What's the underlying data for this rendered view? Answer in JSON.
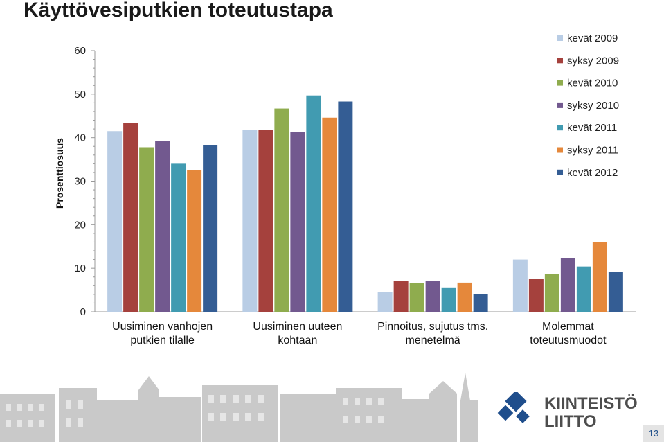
{
  "slide": {
    "title": "Käyttövesiputkien toteutustapa",
    "page_number": "13",
    "logo_line1": "KIINTEISTÖ",
    "logo_line2": "LIITTO"
  },
  "colors": {
    "series": [
      "#b9cde5",
      "#a5413d",
      "#8fac4e",
      "#72598f",
      "#419bb1",
      "#e5883b",
      "#345d94"
    ],
    "logo_blue": "#1f4e8c",
    "logo_text": "#4d4d4d"
  },
  "chart_data": {
    "type": "bar",
    "ylabel": "Prosenttiosuus",
    "ylim": [
      0,
      60
    ],
    "yticks": [
      0,
      10,
      20,
      30,
      40,
      50,
      60
    ],
    "grid": false,
    "legend_position": "top-right",
    "categories": [
      [
        "Uusiminen vanhojen",
        "putkien tilalle"
      ],
      [
        "Uusiminen uuteen",
        "kohtaan"
      ],
      [
        "Pinnoitus, sujutus tms.",
        "menetelmä"
      ],
      [
        "Molemmat",
        "toteutusmuodot"
      ]
    ],
    "series": [
      {
        "name": "kevät 2009",
        "values": [
          41.5,
          41.7,
          4.5,
          12.0
        ]
      },
      {
        "name": "syksy 2009",
        "values": [
          43.3,
          41.8,
          7.1,
          7.6
        ]
      },
      {
        "name": "kevät 2010",
        "values": [
          37.8,
          46.7,
          6.6,
          8.7
        ]
      },
      {
        "name": "syksy 2010",
        "values": [
          39.3,
          41.3,
          7.1,
          12.3
        ]
      },
      {
        "name": "kevät 2011",
        "values": [
          34.0,
          49.7,
          5.6,
          10.4
        ]
      },
      {
        "name": "syksy 2011",
        "values": [
          32.5,
          44.6,
          6.7,
          16.0
        ]
      },
      {
        "name": "kevät  2012",
        "values": [
          38.2,
          48.3,
          4.1,
          9.1
        ]
      }
    ]
  }
}
